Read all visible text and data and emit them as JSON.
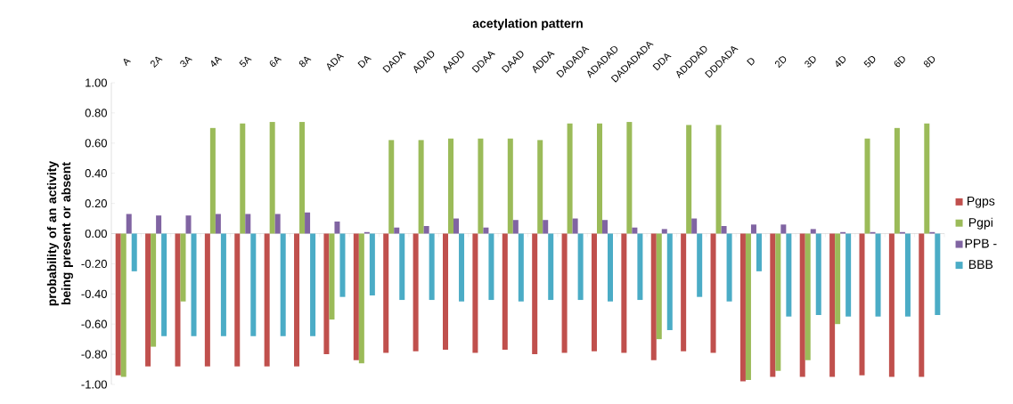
{
  "chart_data": {
    "type": "bar",
    "xlabel": "acetylation pattern",
    "ylabel": "probability of an activity being present or absent",
    "categories": [
      "A",
      "2A",
      "3A",
      "4A",
      "5A",
      "6A",
      "8A",
      "ADA",
      "DA",
      "DADA",
      "ADAD",
      "AADD",
      "DDAA",
      "DAAD",
      "ADDA",
      "DADADA",
      "ADADAD",
      "DADADADA",
      "DDA",
      "ADDDAD",
      "DDDADA",
      "D",
      "2D",
      "3D",
      "4D",
      "5D",
      "6D",
      "8D"
    ],
    "series": [
      {
        "name": "Pgps",
        "color": "#c0504d",
        "values": [
          -0.94,
          -0.88,
          -0.88,
          -0.88,
          -0.88,
          -0.88,
          -0.88,
          -0.8,
          -0.84,
          -0.79,
          -0.78,
          -0.77,
          -0.79,
          -0.77,
          -0.8,
          -0.79,
          -0.78,
          -0.79,
          -0.84,
          -0.78,
          -0.79,
          -0.98,
          -0.95,
          -0.95,
          -0.95,
          -0.94,
          -0.95,
          -0.95
        ]
      },
      {
        "name": "Pgpi",
        "color": "#9bbb59",
        "values": [
          -0.95,
          -0.75,
          -0.45,
          0.7,
          0.73,
          0.74,
          0.74,
          -0.57,
          -0.86,
          0.62,
          0.62,
          0.63,
          0.63,
          0.63,
          0.62,
          0.73,
          0.73,
          0.74,
          -0.7,
          0.72,
          0.72,
          -0.97,
          -0.91,
          -0.84,
          -0.6,
          0.63,
          0.7,
          0.73
        ]
      },
      {
        "name": "PPB -",
        "color": "#8064a2",
        "values": [
          0.13,
          0.12,
          0.12,
          0.13,
          0.13,
          0.13,
          0.14,
          0.08,
          0.01,
          0.04,
          0.05,
          0.1,
          0.04,
          0.09,
          0.09,
          0.1,
          0.09,
          0.04,
          0.03,
          0.1,
          0.05,
          0.06,
          0.06,
          0.03,
          0.01,
          0.01,
          0.01,
          0.01
        ]
      },
      {
        "name": "BBB",
        "color": "#4bacc6",
        "values": [
          -0.25,
          -0.68,
          -0.68,
          -0.68,
          -0.68,
          -0.68,
          -0.68,
          -0.42,
          -0.41,
          -0.44,
          -0.44,
          -0.45,
          -0.44,
          -0.45,
          -0.44,
          -0.44,
          -0.45,
          -0.44,
          -0.64,
          -0.42,
          -0.45,
          -0.25,
          -0.55,
          -0.54,
          -0.55,
          -0.55,
          -0.55,
          -0.54
        ]
      }
    ],
    "ylim": [
      -1,
      1
    ],
    "yticks": [
      {
        "value": -1,
        "label": "-1.00"
      },
      {
        "value": -0.8,
        "label": "-0.80"
      },
      {
        "value": -0.6,
        "label": "-0.60"
      },
      {
        "value": -0.4,
        "label": "-0.40"
      },
      {
        "value": -0.2,
        "label": "-0.20"
      },
      {
        "value": 0,
        "label": "0.00"
      },
      {
        "value": 0.2,
        "label": "0.20"
      },
      {
        "value": 0.4,
        "label": "0.40"
      },
      {
        "value": 0.6,
        "label": "0.60"
      },
      {
        "value": 0.8,
        "label": "0.80"
      },
      {
        "value": 1,
        "label": "1.00"
      }
    ],
    "legend": "right"
  }
}
